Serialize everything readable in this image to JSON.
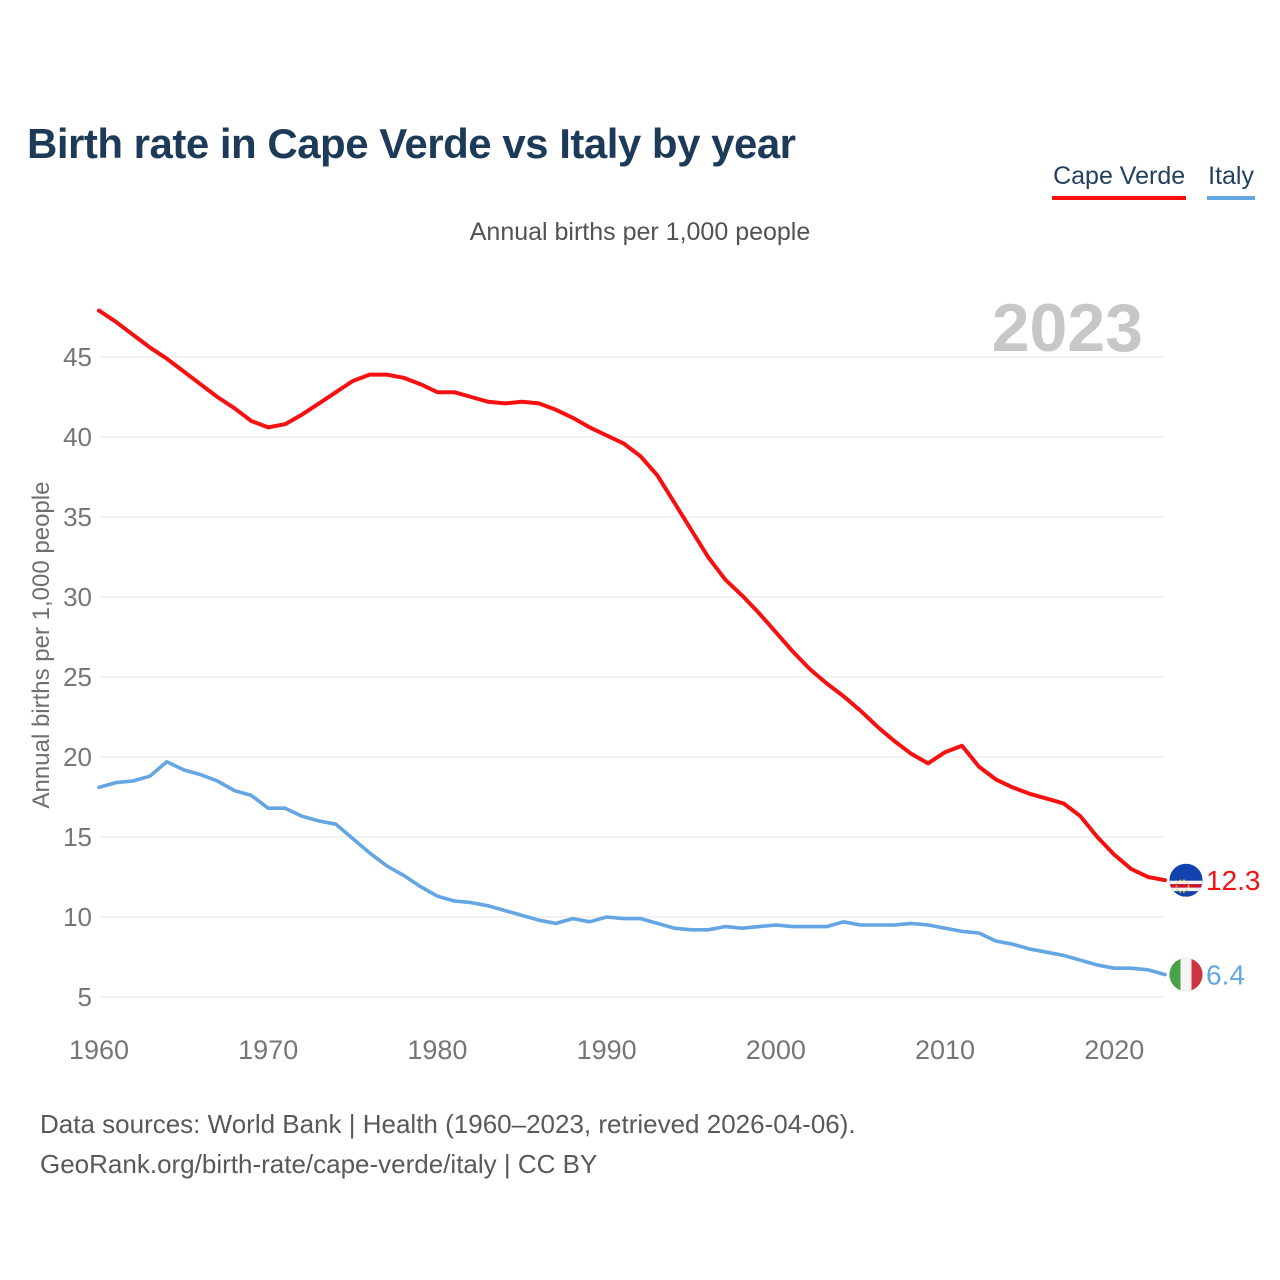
{
  "chart_data": {
    "type": "line",
    "title": "Birth rate in Cape Verde vs Italy by year",
    "subtitle": "Annual births per 1,000 people",
    "ylabel": "Annual births per 1,000 people",
    "watermark": "2023",
    "grid": "horizontal",
    "legend_position": "top-right",
    "xticks": [
      1960,
      1970,
      1980,
      1990,
      2000,
      2010,
      2020
    ],
    "yticks": [
      5,
      10,
      15,
      20,
      25,
      30,
      35,
      40,
      45
    ],
    "ylim": [
      4.2,
      48.2
    ],
    "x": [
      1960,
      1961,
      1962,
      1963,
      1964,
      1965,
      1966,
      1967,
      1968,
      1969,
      1970,
      1971,
      1972,
      1973,
      1974,
      1975,
      1976,
      1977,
      1978,
      1979,
      1980,
      1981,
      1982,
      1983,
      1984,
      1985,
      1986,
      1987,
      1988,
      1989,
      1990,
      1991,
      1992,
      1993,
      1994,
      1995,
      1996,
      1997,
      1998,
      1999,
      2000,
      2001,
      2002,
      2003,
      2004,
      2005,
      2006,
      2007,
      2008,
      2009,
      2010,
      2011,
      2012,
      2013,
      2014,
      2015,
      2016,
      2017,
      2018,
      2019,
      2020,
      2021,
      2022,
      2023
    ],
    "series": [
      {
        "name": "Cape Verde",
        "color": "#f51111",
        "flag": "cape-verde",
        "end_label": "12.3",
        "values": [
          47.9,
          47.2,
          46.4,
          45.6,
          44.9,
          44.1,
          43.3,
          42.5,
          41.8,
          41.0,
          40.6,
          40.8,
          41.4,
          42.1,
          42.8,
          43.5,
          43.9,
          43.9,
          43.7,
          43.3,
          42.8,
          42.8,
          42.5,
          42.2,
          42.1,
          42.2,
          42.1,
          41.7,
          41.2,
          40.6,
          40.1,
          39.6,
          38.8,
          37.6,
          35.9,
          34.2,
          32.5,
          31.1,
          30.1,
          29.0,
          27.8,
          26.6,
          25.5,
          24.6,
          23.8,
          22.9,
          21.9,
          21.0,
          20.2,
          19.6,
          20.3,
          20.7,
          19.4,
          18.6,
          18.1,
          17.7,
          17.4,
          17.1,
          16.3,
          15.0,
          13.9,
          13.0,
          12.5,
          12.3
        ]
      },
      {
        "name": "Italy",
        "color": "#64a5e4",
        "flag": "italy",
        "end_label": "6.4",
        "values": [
          18.1,
          18.4,
          18.5,
          18.8,
          19.7,
          19.2,
          18.9,
          18.5,
          17.9,
          17.6,
          16.8,
          16.8,
          16.3,
          16.0,
          15.8,
          14.9,
          14.0,
          13.2,
          12.6,
          11.9,
          11.3,
          11.0,
          10.9,
          10.7,
          10.4,
          10.1,
          9.8,
          9.6,
          9.9,
          9.7,
          10.0,
          9.9,
          9.9,
          9.6,
          9.3,
          9.2,
          9.2,
          9.4,
          9.3,
          9.4,
          9.5,
          9.4,
          9.4,
          9.4,
          9.7,
          9.5,
          9.5,
          9.5,
          9.6,
          9.5,
          9.3,
          9.1,
          9.0,
          8.5,
          8.3,
          8.0,
          7.8,
          7.6,
          7.3,
          7.0,
          6.8,
          6.8,
          6.7,
          6.4
        ]
      }
    ]
  },
  "flag_colors": {
    "cape_verde_blue": "#1343ae",
    "cape_verde_red": "#d60f2c",
    "cape_verde_white": "#f2f4f7",
    "cape_verde_star_yellow": "#ffd12c",
    "italy_green": "#4aa147",
    "italy_white": "#f4f4f4",
    "italy_red": "#cf3340"
  },
  "footer": {
    "line1": "Data sources: World Bank | Health (1960–2023, retrieved 2026-04-06).",
    "line2": "GeoRank.org/birth-rate/cape-verde/italy | CC BY"
  }
}
